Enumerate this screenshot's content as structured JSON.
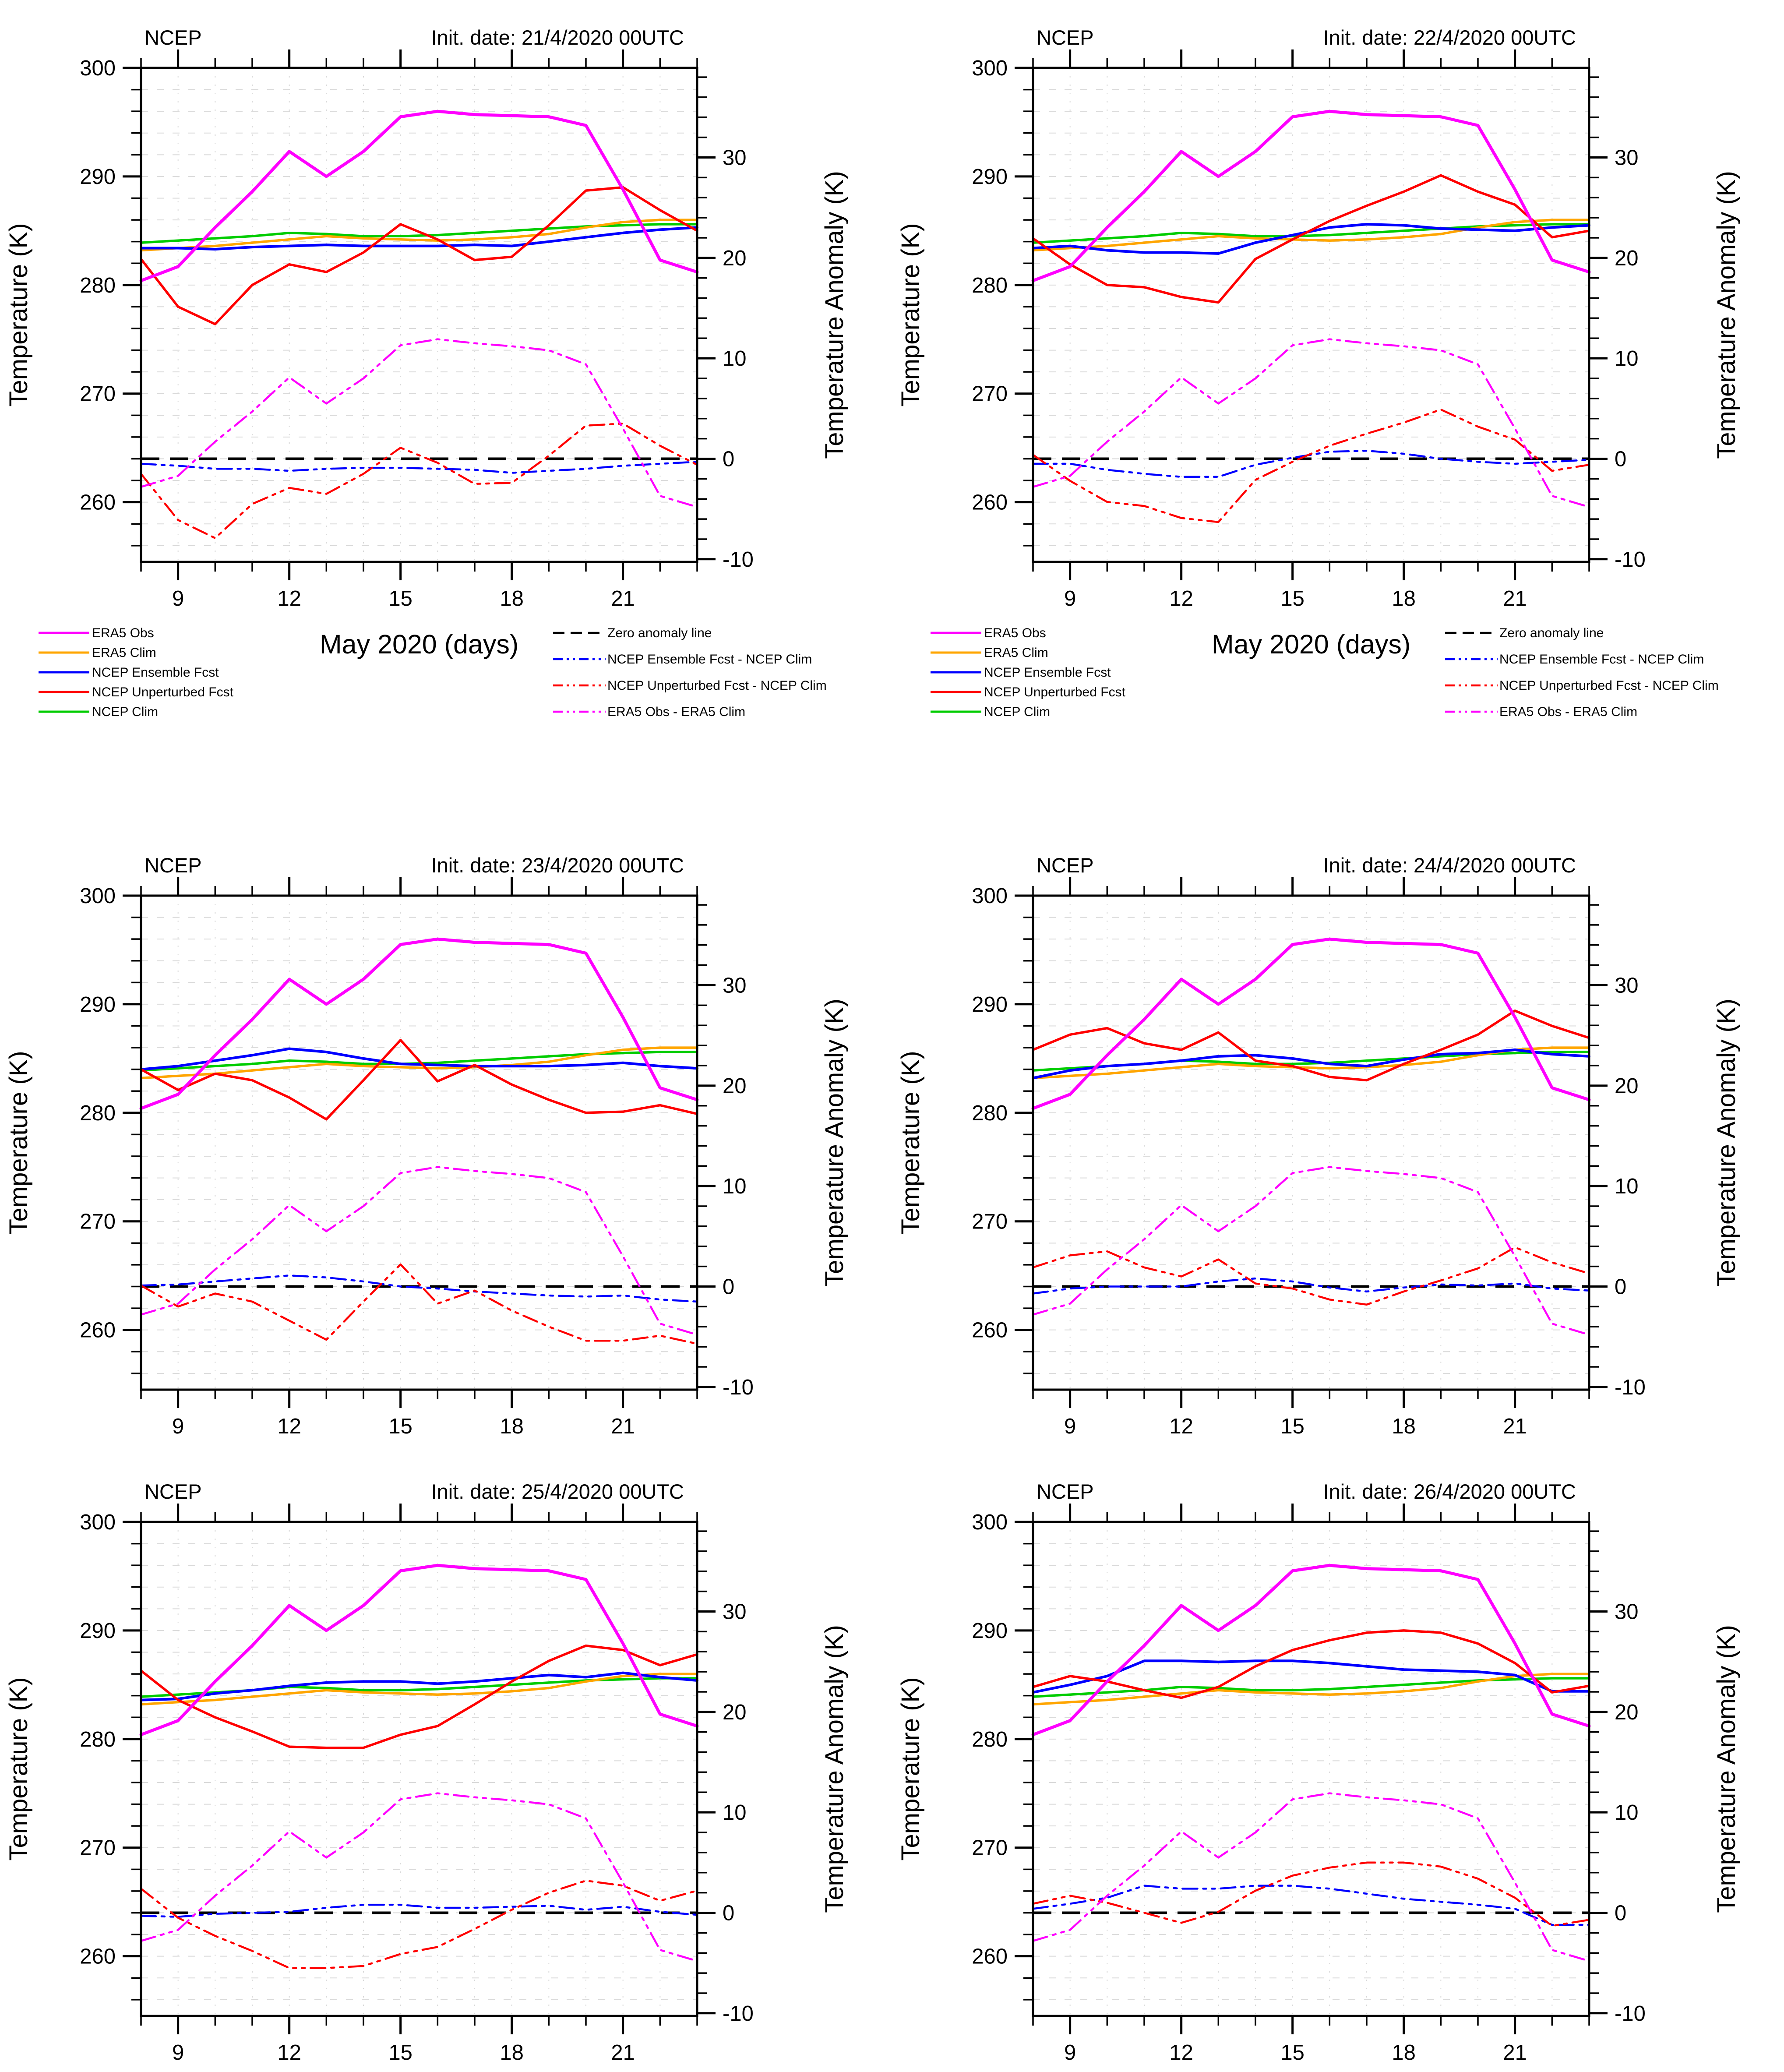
{
  "chart_data": {
    "type": "line",
    "figure": "NCEP ensemble vs unperturbed 2-m temperature forecasts and anomalies, grid of 6 init dates",
    "grid": {
      "rows": 3,
      "cols": 2
    },
    "x": {
      "label": "May 2020 (days)",
      "min": 8,
      "max": 23,
      "ticks": [
        9,
        12,
        15,
        18,
        21
      ],
      "minor_step": 1,
      "days": [
        8,
        9,
        10,
        11,
        12,
        13,
        14,
        15,
        16,
        17,
        18,
        19,
        20,
        21,
        22,
        23
      ]
    },
    "y_left": {
      "label": "Temperature (K)",
      "min": 254.5,
      "max": 300,
      "ticks": [
        260,
        270,
        280,
        290,
        300
      ],
      "minor_step": 2
    },
    "y_right": {
      "label": "Temperature Anomaly (K)",
      "ticks": [
        -10,
        0,
        10,
        20,
        30
      ],
      "minor_step": 2,
      "zero_k": 264,
      "k_per_unit": 0.925
    },
    "colors": {
      "era5_obs": "#ff00ff",
      "era5_clim": "#ffa500",
      "ncep_ensemble": "#0000ff",
      "ncep_unperturbed": "#ff0000",
      "ncep_clim": "#00cc00",
      "zero_line": "#000000",
      "grid": "#d9d9d9",
      "axis": "#000000"
    },
    "series_shared": {
      "era5_obs": [
        280.4,
        281.7,
        285.3,
        288.6,
        292.3,
        290.0,
        292.3,
        295.5,
        296.0,
        295.7,
        295.6,
        295.5,
        294.7,
        288.8,
        282.3,
        281.2
      ],
      "era5_clim": [
        283.2,
        283.4,
        283.6,
        283.9,
        284.2,
        284.5,
        284.3,
        284.2,
        284.1,
        284.2,
        284.4,
        284.7,
        285.3,
        285.8,
        286.0,
        286.0
      ],
      "ncep_clim": [
        283.9,
        284.1,
        284.3,
        284.5,
        284.8,
        284.7,
        284.5,
        284.5,
        284.6,
        284.8,
        285.0,
        285.2,
        285.4,
        285.5,
        285.6,
        285.6
      ]
    },
    "panels": [
      {
        "title_left": "NCEP",
        "title_right": "Init. date: 21/4/2020 00UTC",
        "ncep_ensemble": [
          283.4,
          283.4,
          283.3,
          283.5,
          283.6,
          283.7,
          283.6,
          283.6,
          283.6,
          283.7,
          283.6,
          284.0,
          284.4,
          284.8,
          285.1,
          285.3
        ],
        "ncep_unperturbed": [
          282.4,
          278.0,
          276.4,
          280.0,
          281.9,
          281.2,
          283.0,
          285.6,
          284.2,
          282.3,
          282.6,
          285.5,
          288.7,
          289.0,
          286.9,
          285.0
        ]
      },
      {
        "title_left": "NCEP",
        "title_right": "Init. date: 22/4/2020 00UTC",
        "ncep_ensemble": [
          283.4,
          283.6,
          283.2,
          283.0,
          283.0,
          282.9,
          283.9,
          284.6,
          285.3,
          285.6,
          285.5,
          285.2,
          285.1,
          285.0,
          285.3,
          285.5
        ],
        "ncep_unperturbed": [
          284.3,
          281.9,
          280.0,
          279.8,
          278.9,
          278.4,
          282.4,
          284.2,
          285.9,
          287.3,
          288.6,
          290.1,
          288.6,
          287.4,
          284.4,
          285.0
        ]
      },
      {
        "title_left": "NCEP",
        "title_right": "Init. date: 23/4/2020 00UTC",
        "ncep_ensemble": [
          284.0,
          284.3,
          284.8,
          285.3,
          285.9,
          285.6,
          285.0,
          284.5,
          284.4,
          284.3,
          284.3,
          284.3,
          284.4,
          284.6,
          284.3,
          284.1
        ],
        "ncep_unperturbed": [
          284.0,
          282.1,
          283.6,
          283.0,
          281.4,
          279.4,
          283.0,
          286.7,
          282.9,
          284.4,
          282.6,
          281.2,
          280.0,
          280.1,
          280.7,
          279.9
        ]
      },
      {
        "title_left": "NCEP",
        "title_right": "Init. date: 24/4/2020 00UTC",
        "ncep_ensemble": [
          283.2,
          283.9,
          284.3,
          284.5,
          284.8,
          285.2,
          285.3,
          285.0,
          284.5,
          284.3,
          284.9,
          285.4,
          285.5,
          285.8,
          285.4,
          285.2
        ],
        "ncep_unperturbed": [
          285.8,
          287.2,
          287.8,
          286.4,
          285.8,
          287.4,
          284.8,
          284.3,
          283.3,
          283.0,
          284.5,
          285.8,
          287.2,
          289.4,
          288.0,
          286.9
        ]
      },
      {
        "title_left": "NCEP",
        "title_right": "Init. date: 25/4/2020 00UTC",
        "ncep_ensemble": [
          283.6,
          283.7,
          284.2,
          284.5,
          284.9,
          285.2,
          285.3,
          285.3,
          285.1,
          285.3,
          285.6,
          285.9,
          285.7,
          286.1,
          285.7,
          285.4
        ],
        "ncep_unperturbed": [
          286.3,
          283.6,
          282.0,
          280.7,
          279.3,
          279.2,
          279.2,
          280.4,
          281.2,
          283.2,
          285.3,
          287.2,
          288.6,
          288.2,
          286.8,
          287.8
        ]
      },
      {
        "title_left": "NCEP",
        "title_right": "Init. date: 26/4/2020 00UTC",
        "ncep_ensemble": [
          284.3,
          285.0,
          285.8,
          287.2,
          287.2,
          287.1,
          287.2,
          287.2,
          287.0,
          286.7,
          286.4,
          286.3,
          286.2,
          285.9,
          284.4,
          284.4
        ],
        "ncep_unperturbed": [
          284.8,
          285.8,
          285.3,
          284.5,
          283.8,
          284.8,
          286.7,
          288.2,
          289.1,
          289.8,
          290.0,
          289.8,
          288.8,
          287.0,
          284.3,
          284.9
        ]
      }
    ],
    "legend_left": [
      {
        "label": "ERA5 Obs",
        "color": "#ff00ff",
        "dash": ""
      },
      {
        "label": "ERA5 Clim",
        "color": "#ffa500",
        "dash": ""
      },
      {
        "label": "NCEP Ensemble Fcst",
        "color": "#0000ff",
        "dash": ""
      },
      {
        "label": "NCEP Unperturbed Fcst",
        "color": "#ff0000",
        "dash": ""
      },
      {
        "label": "NCEP Clim",
        "color": "#00cc00",
        "dash": ""
      }
    ],
    "legend_right": [
      {
        "label": "Zero anomaly line",
        "color": "#000000",
        "dash": "26 14"
      },
      {
        "label": "NCEP Ensemble Fcst - NCEP Clim",
        "color": "#0000ff",
        "dash": "22 9 5 9 5 9"
      },
      {
        "label": "NCEP Unperturbed Fcst - NCEP Clim",
        "color": "#ff0000",
        "dash": "22 9 5 9 5 9"
      },
      {
        "label": "ERA5 Obs - ERA5 Clim",
        "color": "#ff00ff",
        "dash": "22 9 5 9 5 9"
      }
    ],
    "derived_series_note": "anomaly curves = forecast minus NCEP Clim, and ERA5 Obs minus ERA5 Clim, plotted on right axis"
  }
}
